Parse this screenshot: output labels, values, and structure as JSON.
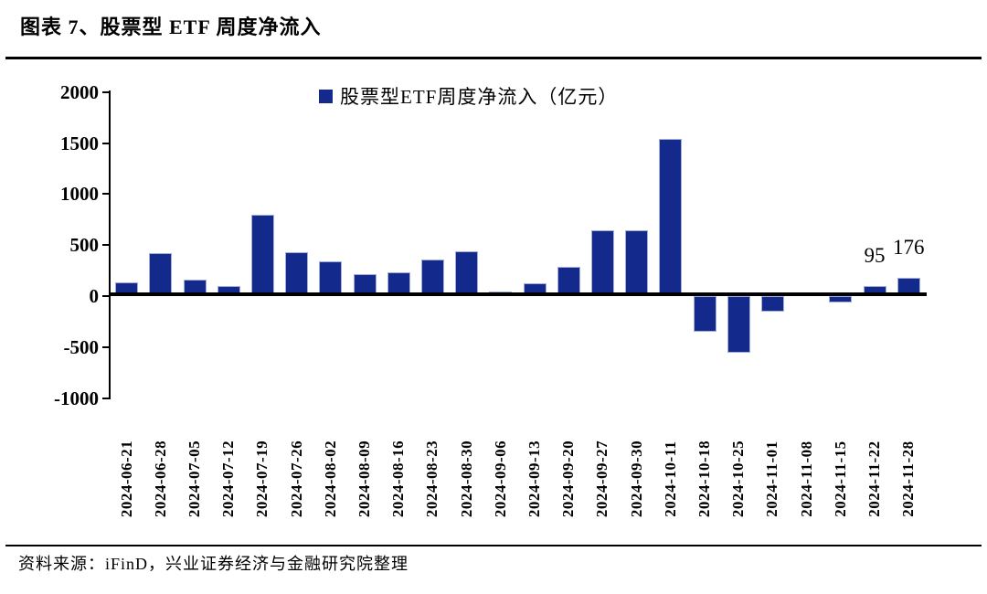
{
  "title": "图表 7、股票型 ETF 周度净流入",
  "footer": {
    "source_text": "资料来源：iFinD，兴业证券经济与金融研究院整理"
  },
  "colors": {
    "bar": "#13298C",
    "bar_border": "#A3AFD8",
    "axis": "#000000",
    "text": "#000000",
    "background": "#FFFFFF"
  },
  "legend": {
    "label": "股票型ETF周度净流入（亿元）",
    "marker": "square"
  },
  "chart_data": {
    "type": "bar",
    "title": "股票型ETF周度净流入（亿元）",
    "unit": "亿元",
    "categories": [
      "2024-06-21",
      "2024-06-28",
      "2024-07-05",
      "2024-07-12",
      "2024-07-19",
      "2024-07-26",
      "2024-08-02",
      "2024-08-09",
      "2024-08-16",
      "2024-08-23",
      "2024-08-30",
      "2024-09-06",
      "2024-09-13",
      "2024-09-20",
      "2024-09-27",
      "2024-09-30",
      "2024-10-11",
      "2024-10-18",
      "2024-10-25",
      "2024-11-01",
      "2024-11-08",
      "2024-11-15",
      "2024-11-22",
      "2024-11-28"
    ],
    "values": [
      130,
      425,
      165,
      100,
      800,
      430,
      340,
      215,
      230,
      355,
      435,
      45,
      125,
      290,
      645,
      645,
      1540,
      -345,
      -560,
      -155,
      15,
      -65,
      95,
      176
    ],
    "point_labels": [
      null,
      null,
      null,
      null,
      null,
      null,
      null,
      null,
      null,
      null,
      null,
      null,
      null,
      null,
      null,
      null,
      null,
      null,
      null,
      null,
      null,
      null,
      "95",
      "176"
    ],
    "yticks": [
      2000,
      1500,
      1000,
      500,
      0,
      -500,
      -1000
    ],
    "ylim": [
      -1000,
      2000
    ],
    "xlabel": "",
    "ylabel": "",
    "grid": false,
    "legend_position": "top-center"
  }
}
